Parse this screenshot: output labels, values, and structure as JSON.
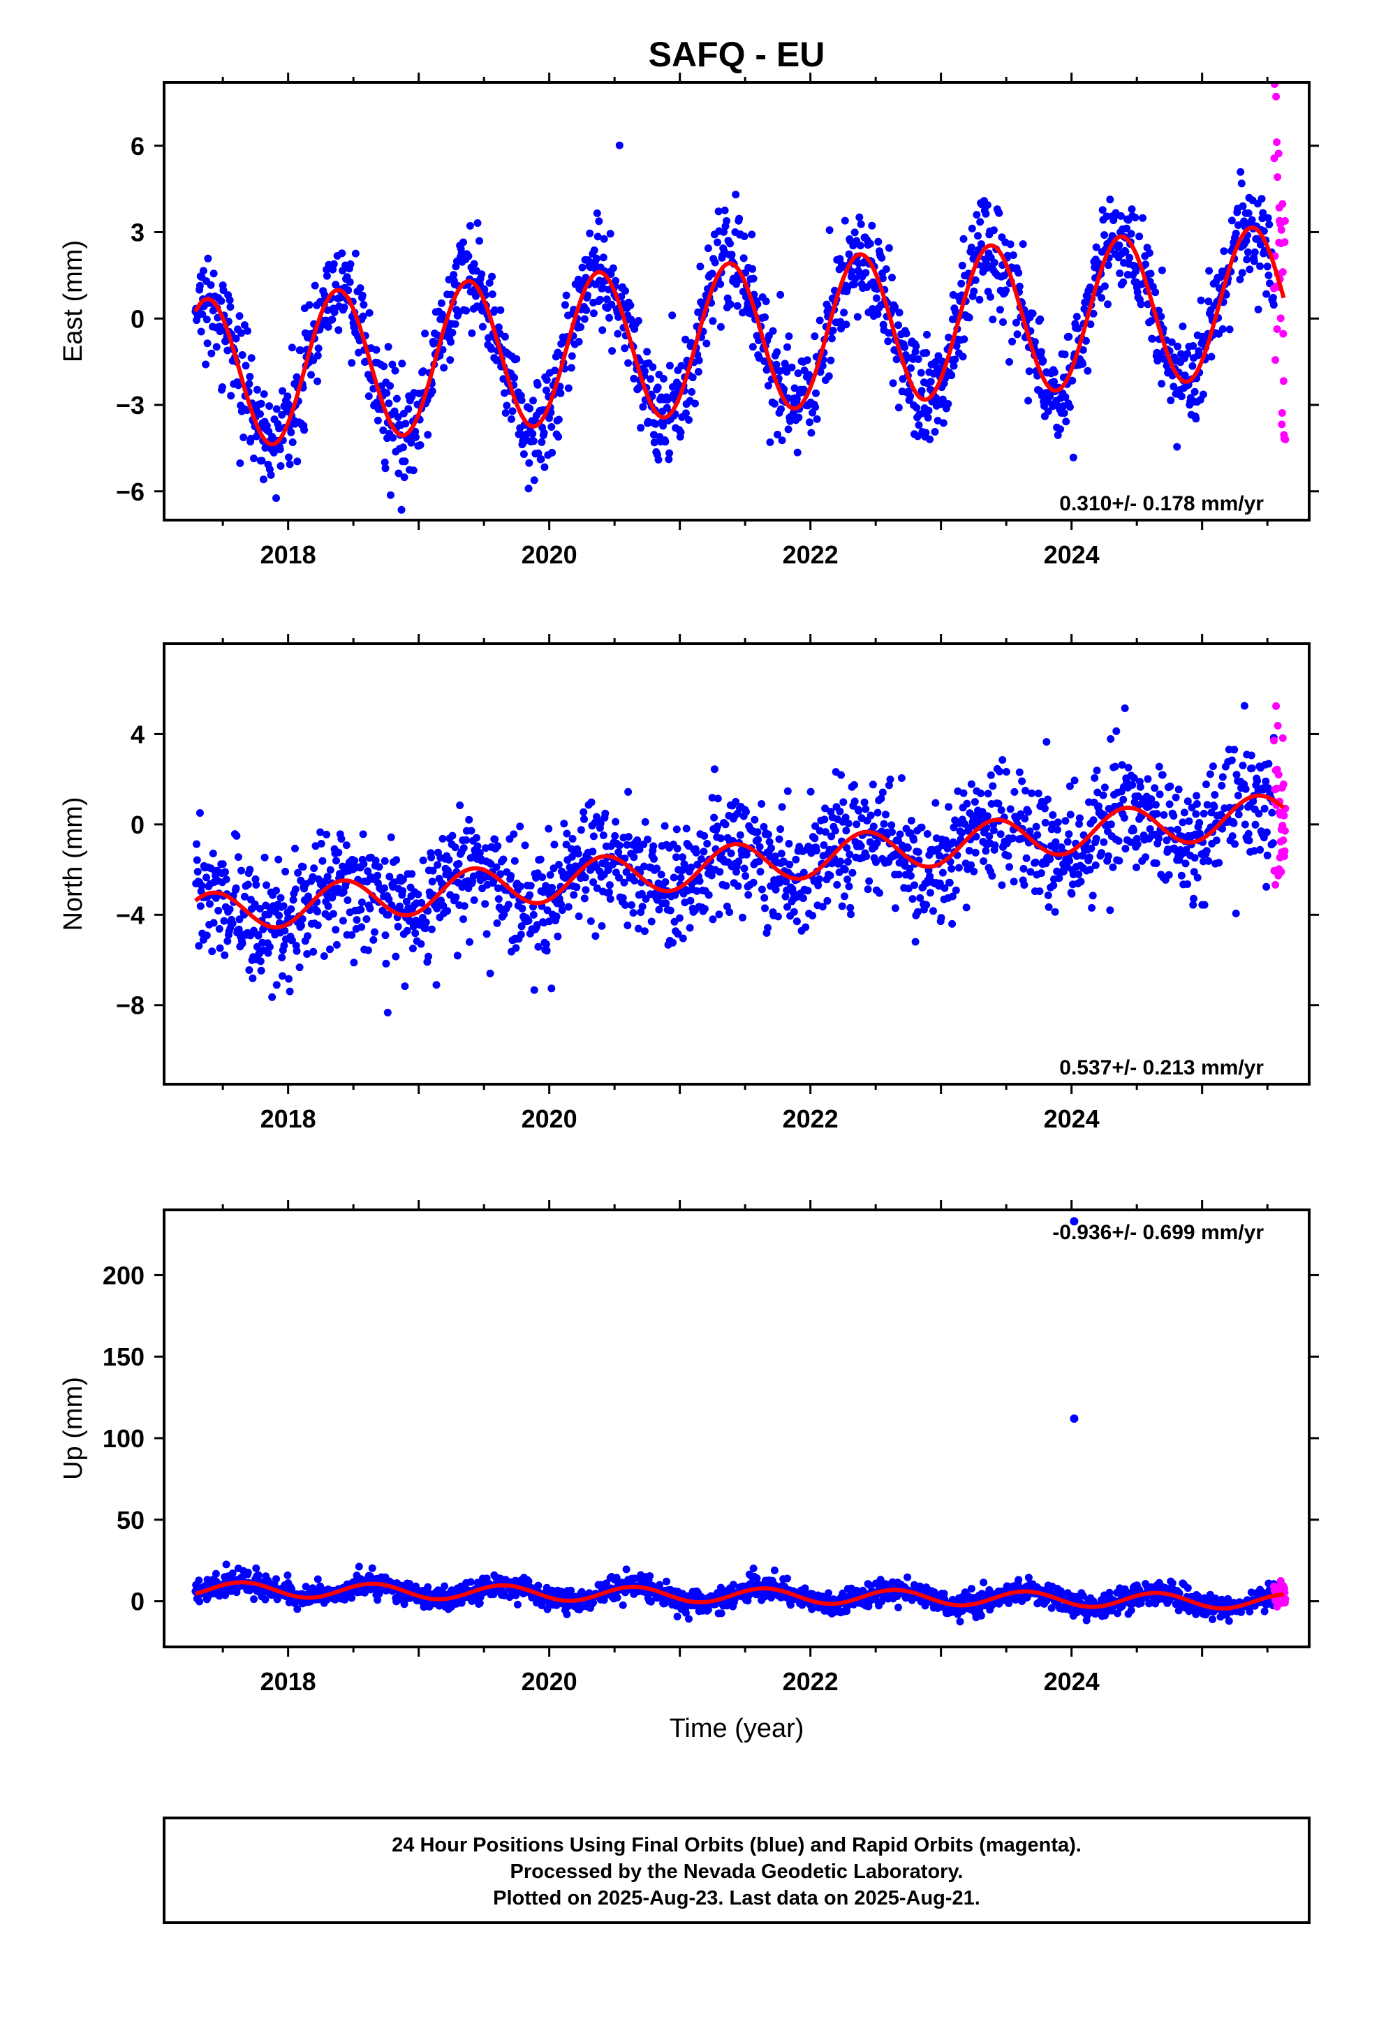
{
  "title": "SAFQ - EU",
  "xlabel": "Time (year)",
  "colors": {
    "final": "#0000ff",
    "rapid": "#ff00ff",
    "model": "#ff0000"
  },
  "footer": {
    "lines": [
      "24 Hour Positions Using Final Orbits (blue) and Rapid Orbits (magenta).",
      "Processed by the Nevada Geodetic Laboratory.",
      "Plotted on 2025-Aug-23. Last data on 2025-Aug-21."
    ]
  },
  "chart_data": [
    {
      "type": "scatter",
      "ylabel": "East (mm)",
      "rate_text": "0.310+/- 0.178 mm/yr",
      "xlim": [
        2017.05,
        2025.82
      ],
      "ylim": [
        -7.0,
        8.2
      ],
      "xticks": [
        2018,
        2020,
        2022,
        2024
      ],
      "yticks": [
        -6,
        -3,
        0,
        3,
        6
      ],
      "model": {
        "start": 2017.29,
        "end": 2025.63,
        "offset": -0.8,
        "rate": 0.31,
        "amplitude": 2.6,
        "peak_phase": 0.38
      },
      "series": [
        {
          "name": "Final Orbits",
          "x_range": [
            2017.29,
            2025.55
          ],
          "scatter_sd": 0.9
        },
        {
          "name": "Rapid Orbits",
          "x_range": [
            2025.55,
            2025.64
          ],
          "scatter_sd": 2.6
        }
      ]
    },
    {
      "type": "scatter",
      "ylabel": "North (mm)",
      "rate_text": "0.537+/- 0.213 mm/yr",
      "xlim": [
        2017.05,
        2025.82
      ],
      "ylim": [
        -11.5,
        8.0
      ],
      "xticks": [
        2018,
        2020,
        2022,
        2024
      ],
      "yticks": [
        -8,
        -4,
        0,
        4
      ],
      "model": {
        "start": 2017.29,
        "end": 2025.63,
        "offset": -2.0,
        "rate": 0.537,
        "amplitude": 0.9,
        "peak_phase": 0.42
      },
      "series": [
        {
          "name": "Final Orbits",
          "x_range": [
            2017.29,
            2025.55
          ],
          "scatter_sd": 1.3
        },
        {
          "name": "Rapid Orbits",
          "x_range": [
            2025.55,
            2025.64
          ],
          "scatter_sd": 1.6
        }
      ]
    },
    {
      "type": "scatter",
      "ylabel": "Up (mm)",
      "rate_text": "-0.936+/- 0.699 mm/yr",
      "xlim": [
        2017.05,
        2025.82
      ],
      "ylim": [
        -28,
        240
      ],
      "xticks": [
        2018,
        2020,
        2022,
        2024
      ],
      "yticks": [
        0,
        50,
        100,
        150,
        200
      ],
      "model": {
        "start": 2017.29,
        "end": 2025.63,
        "offset": 4.0,
        "rate": -0.936,
        "amplitude": 4.5,
        "peak_phase": 0.65
      },
      "outliers": [
        {
          "x": 2024.02,
          "y": 112
        },
        {
          "x": 2024.02,
          "y": 233
        }
      ],
      "series": [
        {
          "name": "Final Orbits",
          "x_range": [
            2017.29,
            2025.55
          ],
          "scatter_sd": 3.5
        },
        {
          "name": "Rapid Orbits",
          "x_range": [
            2025.55,
            2025.64
          ],
          "scatter_sd": 4.5
        }
      ]
    }
  ]
}
